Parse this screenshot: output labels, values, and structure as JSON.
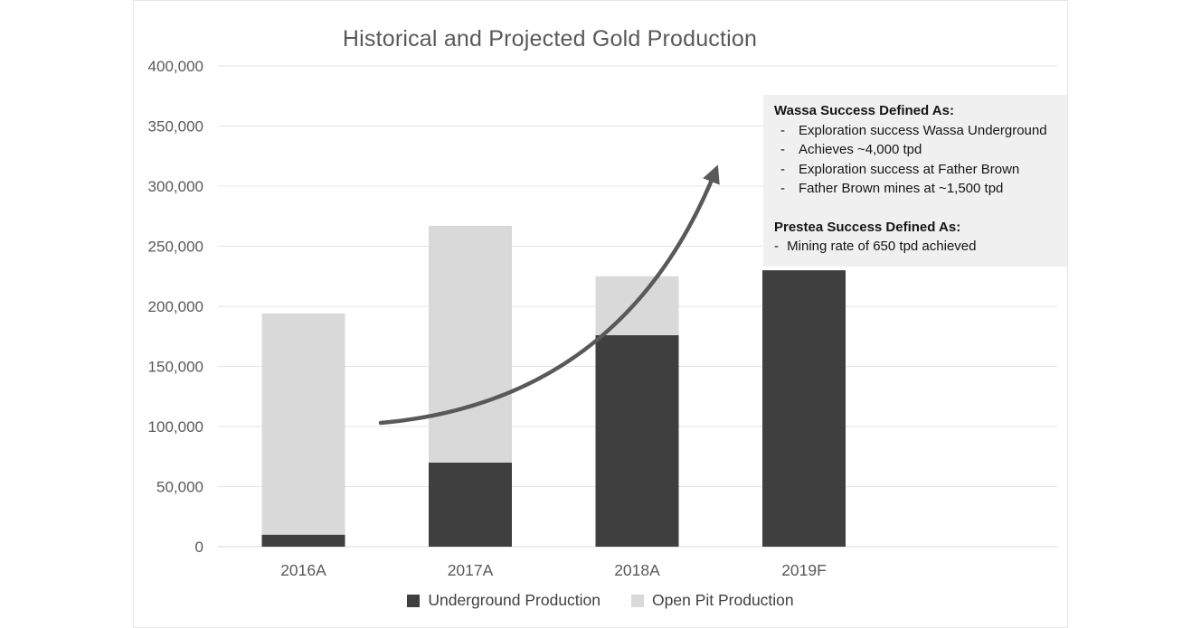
{
  "chart_data": {
    "type": "bar",
    "stacked": true,
    "title": "Historical and Projected Gold Production",
    "categories": [
      "2016A",
      "2017A",
      "2018A",
      "2019F"
    ],
    "series": [
      {
        "name": "Underground Production",
        "color": "#3f3f3f",
        "values": [
          10000,
          70000,
          176000,
          230000
        ]
      },
      {
        "name": "Open Pit Production",
        "color": "#d9d9d9",
        "values": [
          184000,
          197000,
          49000,
          0
        ]
      }
    ],
    "xlabel": "",
    "ylabel": "",
    "ylim": [
      0,
      400000
    ],
    "ytick_step": 50000,
    "grid": true,
    "legend_position": "bottom",
    "annotations": [
      "upward curved trend arrow from ~100,000 near 2016/2017 rising to ~330,000 near 2019F"
    ]
  },
  "annotation_box": {
    "background": "#f0f0f0",
    "bullet": "-",
    "wassa_heading": "Wassa Success Defined As:",
    "wassa_items": [
      "Exploration success Wassa Underground",
      "Achieves ~4,000 tpd",
      "Exploration success at Father Brown",
      "Father Brown mines at ~1,500 tpd"
    ],
    "prestea_heading": "Prestea Success Defined As:",
    "prestea_items": [
      "Mining rate of 650 tpd achieved"
    ]
  },
  "colors": {
    "underground_series": "#3f3f3f",
    "open_pit_series": "#d9d9d9",
    "axis_text": "#595959",
    "gridline": "#e4e4e4",
    "trend_arrow": "#595959",
    "annotation_background": "#f0f0f0"
  }
}
